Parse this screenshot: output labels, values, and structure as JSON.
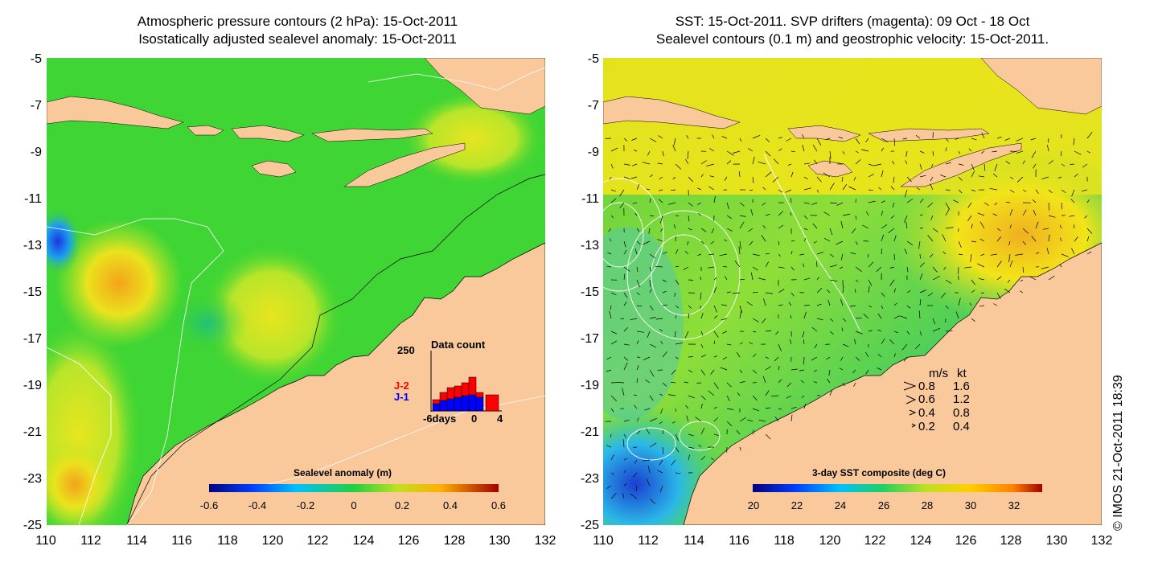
{
  "left_panel": {
    "title_line1": "Atmospheric pressure contours (2 hPa): 15-Oct-2011",
    "title_line2": "Isostatically adjusted sealevel anomaly: 15-Oct-2011",
    "colorbar_title": "Sealevel anomaly (m)",
    "colorbar_ticks": [
      "-0.6",
      "-0.4",
      "-0.2",
      "0",
      "0.2",
      "0.4",
      "0.6"
    ],
    "inset": {
      "title": "Data count",
      "ymax_label": "250",
      "series_labels": [
        "J-2",
        "J-1"
      ],
      "series_colors": [
        "#ff0000",
        "#0000ff"
      ],
      "x_labels": [
        "-6days",
        "0",
        "4"
      ]
    }
  },
  "right_panel": {
    "title_line1": "SST: 15-Oct-2011. SVP drifters (magenta): 09 Oct - 18 Oct",
    "title_line2": "Sealevel contours (0.1 m) and geostrophic velocity: 15-Oct-2011.",
    "colorbar_title": "3-day SST composite (deg C)",
    "colorbar_ticks": [
      "20",
      "22",
      "24",
      "26",
      "28",
      "30",
      "32"
    ],
    "velocity_legend": {
      "header": [
        "m/s",
        "kt"
      ],
      "rows": [
        [
          "0.8",
          "1.6"
        ],
        [
          "0.6",
          "1.2"
        ],
        [
          "0.4",
          "0.8"
        ],
        [
          "0.2",
          "0.4"
        ]
      ]
    }
  },
  "axes": {
    "y_ticks": [
      "-5",
      "-7",
      "-9",
      "-11",
      "-13",
      "-15",
      "-17",
      "-19",
      "-21",
      "-23",
      "-25"
    ],
    "x_ticks": [
      "110",
      "112",
      "114",
      "116",
      "118",
      "120",
      "122",
      "124",
      "126",
      "128",
      "130",
      "132"
    ]
  },
  "colors": {
    "land": "#f9c89b",
    "ocean_green": "#3fd534",
    "sst_yellow": "#f2e419"
  },
  "copyright": "© IMOS 21-Oct-2011 18:39"
}
